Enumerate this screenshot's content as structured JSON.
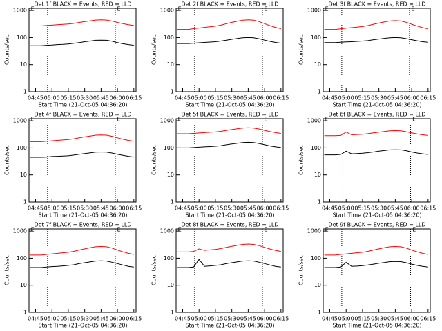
{
  "chart_data": [
    {
      "type": "line",
      "title": "Det 1f BLACK = Events, RED = LLD",
      "xlabel": "Start Time (21-Oct-05 04:36:20)",
      "ylabel": "Counts/sec",
      "x": [
        "04:40",
        "04:45",
        "04:50",
        "04:55",
        "05:00",
        "05:05",
        "05:10",
        "05:15",
        "05:20",
        "05:25",
        "05:30",
        "05:35",
        "05:40",
        "05:45",
        "05:50",
        "05:55",
        "06:00",
        "06:05",
        "06:10",
        "06:15"
      ],
      "xlim": [
        "04:39",
        "06:17"
      ],
      "xticks": [
        "04:45",
        "05:00",
        "05:15",
        "05:30",
        "05:45",
        "06:00",
        "06:15"
      ],
      "ylim": [
        1,
        1200
      ],
      "yticks": [
        1,
        10,
        100,
        1000
      ],
      "log_y": true,
      "vlines": [
        "04:56",
        "05:58"
      ],
      "annotations": [
        {
          "text": "E",
          "x": "04:40"
        },
        {
          "text": "E",
          "x": "05:59"
        }
      ],
      "series": [
        {
          "name": "LLD",
          "color": "#ff0000",
          "values": [
            270,
            270,
            270,
            279,
            288,
            297,
            306,
            315,
            333,
            360,
            387,
            414,
            441,
            450,
            441,
            405,
            360,
            324,
            297,
            279
          ]
        },
        {
          "name": "Events",
          "color": "#000000",
          "values": [
            50,
            50,
            50,
            52,
            53,
            55,
            56,
            58,
            61,
            65,
            70,
            74,
            79,
            80,
            79,
            73,
            65,
            59,
            55,
            52
          ]
        }
      ]
    },
    {
      "type": "line",
      "title": "Det 2f BLACK = Events, RED = LLD",
      "xlabel": "Start Time (21-Oct-05 04:36:20)",
      "ylabel": "Counts/sec",
      "x": [
        "04:40",
        "04:45",
        "04:50",
        "04:55",
        "05:00",
        "05:05",
        "05:10",
        "05:15",
        "05:20",
        "05:25",
        "05:30",
        "05:35",
        "05:40",
        "05:45",
        "05:50",
        "05:55",
        "06:00",
        "06:05",
        "06:10",
        "06:15"
      ],
      "xlim": [
        "04:39",
        "06:17"
      ],
      "xticks": [
        "04:45",
        "05:00",
        "05:15",
        "05:30",
        "05:45",
        "06:00",
        "06:15"
      ],
      "ylim": [
        1,
        1200
      ],
      "yticks": [
        1,
        10,
        100,
        1000
      ],
      "log_y": true,
      "vlines": [
        "04:56",
        "05:58"
      ],
      "annotations": [
        {
          "text": "E",
          "x": "04:40"
        },
        {
          "text": "E",
          "x": "05:59"
        }
      ],
      "series": [
        {
          "name": "LLD",
          "color": "#ff0000",
          "values": [
            200,
            200,
            200,
            213,
            225,
            238,
            250,
            263,
            288,
            325,
            363,
            400,
            438,
            450,
            438,
            388,
            325,
            275,
            238,
            213
          ]
        },
        {
          "name": "Events",
          "color": "#000000",
          "values": [
            60,
            60,
            60,
            62,
            64,
            66,
            68,
            70,
            74,
            80,
            86,
            92,
            98,
            100,
            98,
            90,
            80,
            72,
            66,
            62
          ]
        }
      ]
    },
    {
      "type": "line",
      "title": "Det 3f BLACK = Events, RED = LLD",
      "xlabel": "Start Time (21-Oct-05 04:36:20)",
      "ylabel": "Counts/sec",
      "x": [
        "04:40",
        "04:45",
        "04:50",
        "04:55",
        "05:00",
        "05:05",
        "05:10",
        "05:15",
        "05:20",
        "05:25",
        "05:30",
        "05:35",
        "05:40",
        "05:45",
        "05:50",
        "05:55",
        "06:00",
        "06:05",
        "06:10",
        "06:15"
      ],
      "xlim": [
        "04:39",
        "06:17"
      ],
      "xticks": [
        "04:45",
        "05:00",
        "05:15",
        "05:30",
        "05:45",
        "06:00",
        "06:15"
      ],
      "ylim": [
        1,
        1200
      ],
      "yticks": [
        1,
        10,
        100,
        1000
      ],
      "log_y": true,
      "vlines": [
        "04:56",
        "05:58"
      ],
      "annotations": [
        {
          "text": "E",
          "x": "04:40"
        },
        {
          "text": "E",
          "x": "05:59"
        }
      ],
      "series": [
        {
          "name": "LLD",
          "color": "#ff0000",
          "values": [
            200,
            200,
            200,
            211,
            222,
            233,
            244,
            255,
            277,
            310,
            343,
            376,
            409,
            420,
            409,
            365,
            310,
            266,
            233,
            211
          ]
        },
        {
          "name": "Events",
          "color": "#000000",
          "values": [
            65,
            65,
            65,
            67,
            69,
            70,
            72,
            74,
            77,
            83,
            88,
            93,
            98,
            100,
            98,
            91,
            83,
            76,
            70,
            67
          ]
        }
      ]
    },
    {
      "type": "line",
      "title": "Det 4f BLACK = Events, RED = LLD",
      "xlabel": "Start Time (21-Oct-05 04:36:20)",
      "ylabel": "Counts/sec",
      "x": [
        "04:40",
        "04:45",
        "04:50",
        "04:55",
        "05:00",
        "05:05",
        "05:10",
        "05:15",
        "05:20",
        "05:25",
        "05:30",
        "05:35",
        "05:40",
        "05:45",
        "05:50",
        "05:55",
        "06:00",
        "06:05",
        "06:10",
        "06:15"
      ],
      "xlim": [
        "04:39",
        "06:17"
      ],
      "xticks": [
        "04:45",
        "05:00",
        "05:15",
        "05:30",
        "05:45",
        "06:00",
        "06:15"
      ],
      "ylim": [
        1,
        1200
      ],
      "yticks": [
        1,
        10,
        100,
        1000
      ],
      "log_y": true,
      "vlines": [
        "04:56",
        "05:58"
      ],
      "annotations": [
        {
          "text": "E",
          "x": "04:40"
        },
        {
          "text": "E",
          "x": "05:59"
        }
      ],
      "series": [
        {
          "name": "LLD",
          "color": "#ff0000",
          "values": [
            170,
            170,
            170,
            177,
            183,
            190,
            196,
            203,
            216,
            235,
            255,
            274,
            294,
            300,
            294,
            268,
            235,
            209,
            190,
            177
          ]
        },
        {
          "name": "Events",
          "color": "#000000",
          "values": [
            45,
            45,
            45,
            46,
            48,
            49,
            50,
            51,
            54,
            58,
            61,
            65,
            69,
            70,
            69,
            64,
            58,
            53,
            49,
            46
          ]
        }
      ]
    },
    {
      "type": "line",
      "title": "Det 5f BLACK = Events, RED = LLD",
      "xlabel": "Start Time (21-Oct-05 04:36:20)",
      "ylabel": "Counts/sec",
      "x": [
        "04:40",
        "04:45",
        "04:50",
        "04:55",
        "05:00",
        "05:05",
        "05:10",
        "05:15",
        "05:20",
        "05:25",
        "05:30",
        "05:35",
        "05:40",
        "05:45",
        "05:50",
        "05:55",
        "06:00",
        "06:05",
        "06:10",
        "06:15"
      ],
      "xlim": [
        "04:39",
        "06:17"
      ],
      "xticks": [
        "04:45",
        "05:00",
        "05:15",
        "05:30",
        "05:45",
        "06:00",
        "06:15"
      ],
      "ylim": [
        1,
        1200
      ],
      "yticks": [
        1,
        10,
        100,
        1000
      ],
      "log_y": true,
      "vlines": [
        "04:56",
        "05:58"
      ],
      "annotations": [
        {
          "text": "E",
          "x": "04:40"
        },
        {
          "text": "E",
          "x": "05:59"
        }
      ],
      "series": [
        {
          "name": "LLD",
          "color": "#ff0000",
          "values": [
            330,
            330,
            330,
            341,
            352,
            363,
            374,
            385,
            407,
            440,
            473,
            506,
            539,
            550,
            539,
            495,
            440,
            396,
            363,
            341
          ]
        },
        {
          "name": "Events",
          "color": "#000000",
          "values": [
            100,
            100,
            100,
            103,
            106,
            109,
            112,
            115,
            121,
            130,
            139,
            148,
            157,
            160,
            157,
            145,
            130,
            118,
            109,
            103
          ]
        }
      ]
    },
    {
      "type": "line",
      "title": "Det 6f BLACK = Events, RED = LLD",
      "xlabel": "Start Time (21-Oct-05 04:36:20)",
      "ylabel": "Counts/sec",
      "x": [
        "04:40",
        "04:45",
        "04:50",
        "04:55",
        "05:00",
        "05:05",
        "05:10",
        "05:15",
        "05:20",
        "05:25",
        "05:30",
        "05:35",
        "05:40",
        "05:45",
        "05:50",
        "05:55",
        "06:00",
        "06:05",
        "06:10",
        "06:15"
      ],
      "xlim": [
        "04:39",
        "06:17"
      ],
      "xticks": [
        "04:45",
        "05:00",
        "05:15",
        "05:30",
        "05:45",
        "06:00",
        "06:15"
      ],
      "ylim": [
        1,
        1200
      ],
      "yticks": [
        1,
        10,
        100,
        1000
      ],
      "log_y": true,
      "vlines": [
        "04:57",
        "05:59"
      ],
      "annotations": [
        {
          "text": "E",
          "x": "04:40"
        },
        {
          "text": "E",
          "x": "06:00"
        }
      ],
      "series": [
        {
          "name": "LLD",
          "color": "#ff0000",
          "values": [
            280,
            280,
            280,
            288,
            380,
            303,
            310,
            318,
            333,
            355,
            378,
            400,
            423,
            430,
            423,
            393,
            355,
            325,
            303,
            288
          ]
        },
        {
          "name": "Events",
          "color": "#000000",
          "values": [
            55,
            55,
            55,
            57,
            75,
            60,
            61,
            63,
            66,
            70,
            75,
            79,
            84,
            85,
            84,
            78,
            70,
            64,
            60,
            57
          ]
        }
      ]
    },
    {
      "type": "line",
      "title": "Det 7f BLACK = Events, RED = LLD",
      "xlabel": "Start Time (21-Oct-05 04:36:20)",
      "ylabel": "Counts/sec",
      "x": [
        "04:40",
        "04:45",
        "04:50",
        "04:55",
        "05:00",
        "05:05",
        "05:10",
        "05:15",
        "05:20",
        "05:25",
        "05:30",
        "05:35",
        "05:40",
        "05:45",
        "05:50",
        "05:55",
        "06:00",
        "06:05",
        "06:10",
        "06:15"
      ],
      "xlim": [
        "04:39",
        "06:17"
      ],
      "xticks": [
        "04:45",
        "05:00",
        "05:15",
        "05:30",
        "05:45",
        "06:00",
        "06:15"
      ],
      "ylim": [
        1,
        1200
      ],
      "yticks": [
        1,
        10,
        100,
        1000
      ],
      "log_y": true,
      "vlines": [
        "04:56",
        "05:58"
      ],
      "annotations": [
        {
          "text": "E",
          "x": "04:40"
        },
        {
          "text": "E",
          "x": "05:59"
        }
      ],
      "series": [
        {
          "name": "LLD",
          "color": "#ff0000",
          "values": [
            130,
            130,
            130,
            137,
            144,
            151,
            158,
            165,
            179,
            200,
            221,
            242,
            263,
            270,
            263,
            235,
            200,
            172,
            151,
            137
          ]
        },
        {
          "name": "Events",
          "color": "#000000",
          "values": [
            45,
            45,
            45,
            47,
            49,
            50,
            52,
            54,
            57,
            63,
            68,
            73,
            78,
            80,
            78,
            71,
            63,
            56,
            50,
            47
          ]
        }
      ]
    },
    {
      "type": "line",
      "title": "Det 8f BLACK = Events, RED = LLD",
      "xlabel": "Start Time (21-Oct-05 04:36:20)",
      "ylabel": "Counts/sec",
      "x": [
        "04:40",
        "04:45",
        "04:50",
        "04:55",
        "05:00",
        "05:05",
        "05:10",
        "05:15",
        "05:20",
        "05:25",
        "05:30",
        "05:35",
        "05:40",
        "05:45",
        "05:50",
        "05:55",
        "06:00",
        "06:05",
        "06:10",
        "06:15"
      ],
      "xlim": [
        "04:39",
        "06:17"
      ],
      "xticks": [
        "04:45",
        "05:00",
        "05:15",
        "05:30",
        "05:45",
        "06:00",
        "06:15"
      ],
      "ylim": [
        1,
        1200
      ],
      "yticks": [
        1,
        10,
        100,
        1000
      ],
      "log_y": true,
      "vlines": [
        "04:56",
        "05:58"
      ],
      "annotations": [
        {
          "text": "E",
          "x": "04:40"
        },
        {
          "text": "E",
          "x": "05:59"
        }
      ],
      "series": [
        {
          "name": "LLD",
          "color": "#ff0000",
          "values": [
            170,
            170,
            170,
            178,
            220,
            194,
            202,
            210,
            226,
            250,
            274,
            298,
            322,
            330,
            322,
            290,
            250,
            218,
            194,
            178
          ]
        },
        {
          "name": "Events",
          "color": "#000000",
          "values": [
            45,
            45,
            45,
            47,
            90,
            50,
            52,
            54,
            57,
            63,
            68,
            73,
            78,
            80,
            78,
            71,
            63,
            56,
            50,
            47
          ]
        }
      ]
    },
    {
      "type": "line",
      "title": "Det 9f BLACK = Events, RED = LLD",
      "xlabel": "Start Time (21-Oct-05 04:36:20)",
      "ylabel": "Counts/sec",
      "x": [
        "04:40",
        "04:45",
        "04:50",
        "04:55",
        "05:00",
        "05:05",
        "05:10",
        "05:15",
        "05:20",
        "05:25",
        "05:30",
        "05:35",
        "05:40",
        "05:45",
        "05:50",
        "05:55",
        "06:00",
        "06:05",
        "06:10",
        "06:15"
      ],
      "xlim": [
        "04:39",
        "06:17"
      ],
      "xticks": [
        "04:45",
        "05:00",
        "05:15",
        "05:30",
        "05:45",
        "06:00",
        "06:15"
      ],
      "ylim": [
        1,
        1200
      ],
      "yticks": [
        1,
        10,
        100,
        1000
      ],
      "log_y": true,
      "vlines": [
        "04:56",
        "05:59"
      ],
      "annotations": [
        {
          "text": "E",
          "x": "04:40"
        },
        {
          "text": "E",
          "x": "06:00"
        }
      ],
      "series": [
        {
          "name": "LLD",
          "color": "#ff0000",
          "values": [
            130,
            130,
            130,
            137,
            144,
            151,
            158,
            165,
            179,
            200,
            221,
            242,
            263,
            270,
            263,
            235,
            200,
            172,
            151,
            137
          ]
        },
        {
          "name": "Events",
          "color": "#000000",
          "values": [
            45,
            45,
            45,
            47,
            70,
            50,
            51,
            53,
            56,
            60,
            65,
            69,
            74,
            75,
            74,
            68,
            60,
            54,
            50,
            47
          ]
        }
      ]
    }
  ]
}
